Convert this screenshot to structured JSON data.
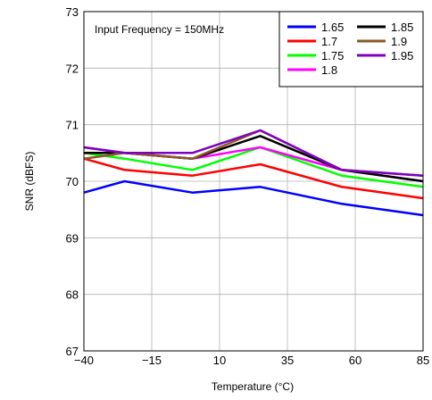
{
  "chart_data": {
    "type": "line",
    "title": "",
    "annotation": "Input Frequency = 150MHz",
    "xlabel": "Temperature (°C)",
    "ylabel": "SNR (dBFS)",
    "xlim": [
      -40,
      85
    ],
    "ylim": [
      67,
      73
    ],
    "x_ticks": [
      -40,
      -15,
      10,
      35,
      60,
      85
    ],
    "x_tick_labels": [
      "−40",
      "−15",
      "10",
      "35",
      "60",
      "85"
    ],
    "y_ticks": [
      67,
      68,
      69,
      70,
      71,
      72,
      73
    ],
    "y_tick_labels": [
      "67",
      "68",
      "69",
      "70",
      "71",
      "72",
      "73"
    ],
    "grid": true,
    "legend_position": "top-right",
    "x": [
      -40,
      -25,
      0,
      25,
      55,
      85
    ],
    "series": [
      {
        "name": "1.65",
        "color": "#0000ff",
        "values": [
          69.8,
          70.0,
          69.8,
          69.9,
          69.6,
          69.4
        ]
      },
      {
        "name": "1.7",
        "color": "#ff0000",
        "values": [
          70.4,
          70.2,
          70.1,
          70.3,
          69.9,
          69.7
        ]
      },
      {
        "name": "1.75",
        "color": "#00ff00",
        "values": [
          70.5,
          70.4,
          70.2,
          70.6,
          70.1,
          69.9
        ]
      },
      {
        "name": "1.8",
        "color": "#ff00ff",
        "values": [
          70.6,
          70.5,
          70.4,
          70.6,
          70.2,
          70.0
        ]
      },
      {
        "name": "1.85",
        "color": "#000000",
        "values": [
          70.5,
          70.5,
          70.4,
          70.8,
          70.2,
          70.0
        ]
      },
      {
        "name": "1.9",
        "color": "#8b5a2b",
        "values": [
          70.4,
          70.5,
          70.4,
          70.9,
          70.2,
          70.1
        ]
      },
      {
        "name": "1.95",
        "color": "#8000c0",
        "values": [
          70.6,
          70.5,
          70.5,
          70.9,
          70.2,
          70.1
        ]
      }
    ]
  }
}
